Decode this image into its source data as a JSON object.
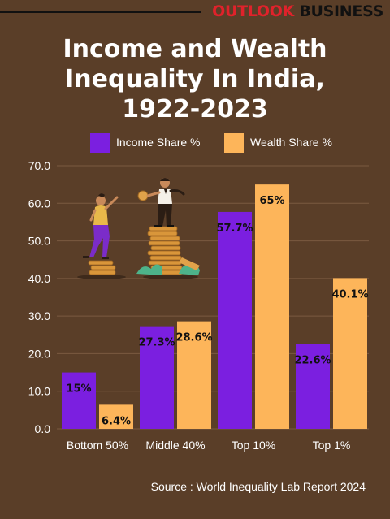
{
  "brand": {
    "part1": "OUTLOOK",
    "part2": "BUSINESS"
  },
  "title_lines": [
    "Income and Wealth",
    "Inequality In India,",
    "1922-2023"
  ],
  "source": "Source : World Inequality Lab Report 2024",
  "colors": {
    "background": "#5a3e28",
    "income": "#7b1fe0",
    "wealth": "#fdb55a",
    "grid": "#7a5a40",
    "label": "#111111"
  },
  "chart_data": {
    "type": "bar",
    "title": "Income and Wealth Inequality In India, 1922-2023",
    "categories": [
      "Bottom 50%",
      "Middle 40%",
      "Top 10%",
      "Top 1%"
    ],
    "series": [
      {
        "name": "Income Share %",
        "values": [
          15,
          27.3,
          57.7,
          22.6
        ],
        "labels": [
          "15%",
          "27.3%",
          "57.7%",
          "22.6%"
        ]
      },
      {
        "name": "Wealth Share %",
        "values": [
          6.4,
          28.6,
          65,
          40.1
        ],
        "labels": [
          "6.4%",
          "28.6%",
          "65%",
          "40.1%"
        ]
      }
    ],
    "ylim": [
      0,
      70
    ],
    "yticks": [
      "0.0",
      "10.0",
      "20.0",
      "30.0",
      "40.0",
      "50.0",
      "60.0",
      "70.0"
    ],
    "grid": true,
    "legend_position": "top"
  }
}
